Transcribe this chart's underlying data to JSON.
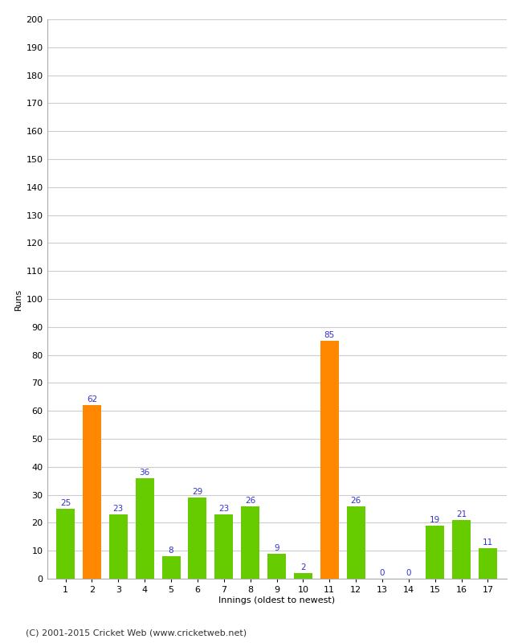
{
  "innings": [
    1,
    2,
    3,
    4,
    5,
    6,
    7,
    8,
    9,
    10,
    11,
    12,
    13,
    14,
    15,
    16,
    17
  ],
  "runs": [
    25,
    62,
    23,
    36,
    8,
    29,
    23,
    26,
    9,
    2,
    85,
    26,
    0,
    0,
    19,
    21,
    11
  ],
  "colors": [
    "#66cc00",
    "#ff8800",
    "#66cc00",
    "#66cc00",
    "#66cc00",
    "#66cc00",
    "#66cc00",
    "#66cc00",
    "#66cc00",
    "#66cc00",
    "#ff8800",
    "#66cc00",
    "#66cc00",
    "#66cc00",
    "#66cc00",
    "#66cc00",
    "#66cc00"
  ],
  "ylabel": "Runs",
  "xlabel": "Innings (oldest to newest)",
  "footer": "(C) 2001-2015 Cricket Web (www.cricketweb.net)",
  "ylim": [
    0,
    200
  ],
  "yticks": [
    0,
    10,
    20,
    30,
    40,
    50,
    60,
    70,
    80,
    90,
    100,
    110,
    120,
    130,
    140,
    150,
    160,
    170,
    180,
    190,
    200
  ],
  "label_color": "#3333cc",
  "bar_width": 0.7,
  "background_color": "#ffffff",
  "grid_color": "#cccccc"
}
